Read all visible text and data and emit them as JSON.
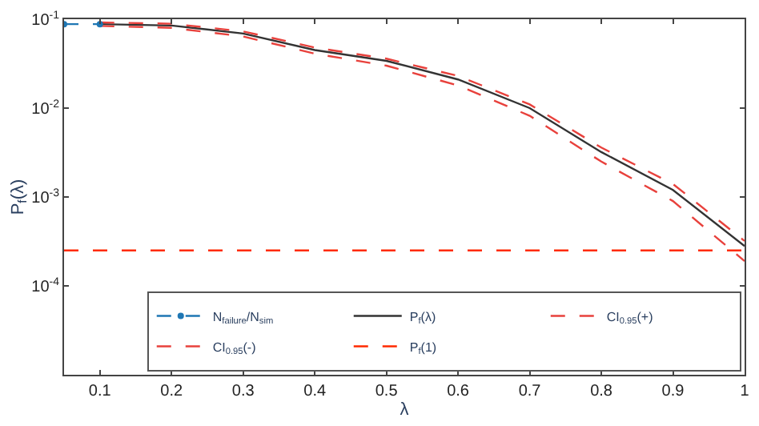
{
  "chart_data": {
    "type": "line",
    "xlabel": "λ",
    "ylabel": "P$_{f}$(λ)",
    "log": "y",
    "grid": false,
    "legend": "bottom right",
    "xlim": [
      0.05,
      1
    ],
    "xticks": [
      0.1,
      0.2,
      0.3,
      0.4,
      0.5,
      0.6,
      0.7,
      0.8,
      0.9,
      1
    ],
    "ylim": [
      1e-05,
      0.1
    ],
    "yticks": [
      {
        "value": 0.1,
        "label": "10$^{-1}$"
      },
      {
        "value": 0.01,
        "label": "10$^{-2}$"
      },
      {
        "value": 0.001,
        "label": "10$^{-3}$"
      },
      {
        "value": 0.0001,
        "label": "10$^{-4}$"
      }
    ],
    "series": [
      {
        "name": "N$_{failure}$/N$_{sim}$",
        "color": "#1f77b4",
        "x": [
          0.05,
          0.1
        ],
        "values": [
          0.088,
          0.088
        ],
        "line_style": "dashed",
        "marker": "circle"
      },
      {
        "name": "P$_{f}$(λ)",
        "color": "#333333",
        "x": [
          0.1,
          0.2,
          0.3,
          0.4,
          0.5,
          0.6,
          0.7,
          0.8,
          0.9,
          1
        ],
        "values": [
          0.088,
          0.085,
          0.069,
          0.045,
          0.034,
          0.021,
          0.01,
          0.0032,
          0.0012,
          0.00028
        ],
        "line_style": "solid"
      },
      {
        "name": "CI$_{0.95}$(+)",
        "color": "#e8413c",
        "x": [
          0.1,
          0.2,
          0.3,
          0.4,
          0.5,
          0.6,
          0.7,
          0.8,
          0.9,
          1
        ],
        "values": [
          0.092,
          0.089,
          0.073,
          0.048,
          0.036,
          0.023,
          0.011,
          0.0036,
          0.0014,
          0.00032
        ],
        "line_style": "dashed"
      },
      {
        "name": "CI$_{0.95}$(-)",
        "color": "#e8413c",
        "x": [
          0.1,
          0.2,
          0.3,
          0.4,
          0.5,
          0.6,
          0.7,
          0.8,
          0.9,
          1
        ],
        "values": [
          0.084,
          0.08,
          0.064,
          0.041,
          0.03,
          0.018,
          0.0082,
          0.0025,
          0.0009,
          0.00019
        ],
        "line_style": "dashed"
      },
      {
        "name": "P$_{f}$(1)",
        "color": "#ff2a00",
        "x": [
          0.05,
          1
        ],
        "values": [
          0.00025,
          0.00025
        ],
        "line_style": "dashed"
      }
    ]
  }
}
